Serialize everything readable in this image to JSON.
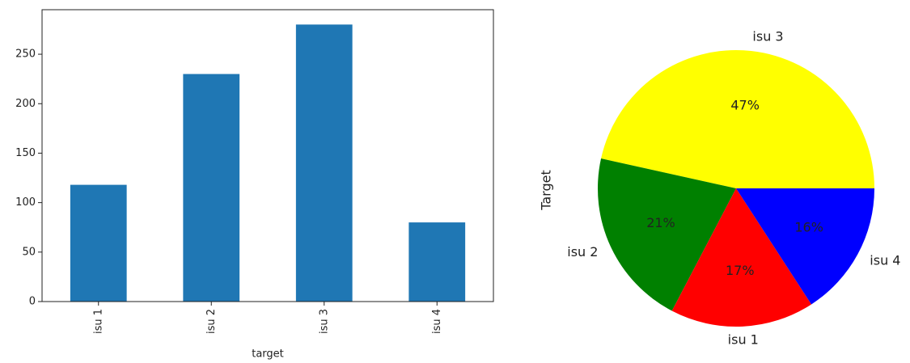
{
  "chart_data": [
    {
      "type": "bar",
      "x_label": "target",
      "categories": [
        "isu 1",
        "isu 2",
        "isu 3",
        "isu 4"
      ],
      "values": [
        118,
        230,
        280,
        80
      ],
      "color": "#1f77b4",
      "ylim": [
        0,
        295
      ],
      "yticks": [
        0,
        50,
        100,
        150,
        200,
        250
      ]
    },
    {
      "type": "pie",
      "y_label": "Target",
      "categories": [
        "isu 3",
        "isu 2",
        "isu 1",
        "isu 4"
      ],
      "values": [
        47,
        21,
        17,
        16
      ],
      "value_labels": [
        "47%",
        "21%",
        "17%",
        "16%"
      ],
      "colors": [
        "#ffff00",
        "#008000",
        "#ff0000",
        "#0000ff"
      ]
    }
  ]
}
